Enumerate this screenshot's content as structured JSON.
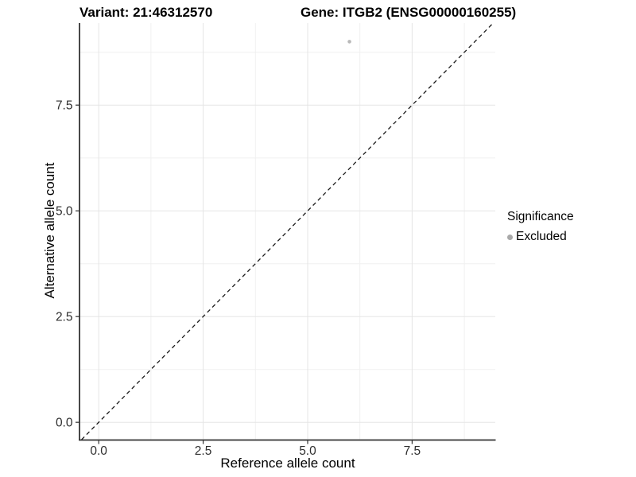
{
  "chart_data": {
    "type": "scatter",
    "title_variant": "Variant: 21:46312570",
    "title_gene": "Gene: ITGB2 (ENSG00000160255)",
    "xlabel": "Reference allele count",
    "ylabel": "Alternative allele count",
    "x_ticks": [
      0,
      2.5,
      5,
      7.5
    ],
    "x_tick_labels": [
      "0.0",
      "2.5",
      "5.0",
      "7.5"
    ],
    "y_ticks": [
      0,
      2.5,
      5,
      7.5
    ],
    "y_tick_labels": [
      "0.0",
      "2.5",
      "5.0",
      "7.5"
    ],
    "xlim": [
      -0.45,
      9.49
    ],
    "ylim": [
      -0.41,
      9.44
    ],
    "minor_grid_step": 1.25,
    "grid": true,
    "reference_line": {
      "type": "identity",
      "slope": 1,
      "intercept": 0,
      "style": "dashed",
      "color": "#1a1a1a"
    },
    "points": [
      {
        "x": 6,
        "y": 9,
        "significance": "Excluded"
      }
    ],
    "legend": {
      "title": "Significance",
      "position": "right",
      "items": [
        {
          "label": "Excluded",
          "color": "#a9a9a9"
        }
      ]
    },
    "colors": {
      "background": "#ffffff",
      "major_grid": "#e5e5e5",
      "minor_grid": "#f0f0f0",
      "axis_line": "#333333",
      "tick_mark": "#333333",
      "tick_text": "#2f2f2f",
      "point": "#b9b9b9"
    }
  }
}
